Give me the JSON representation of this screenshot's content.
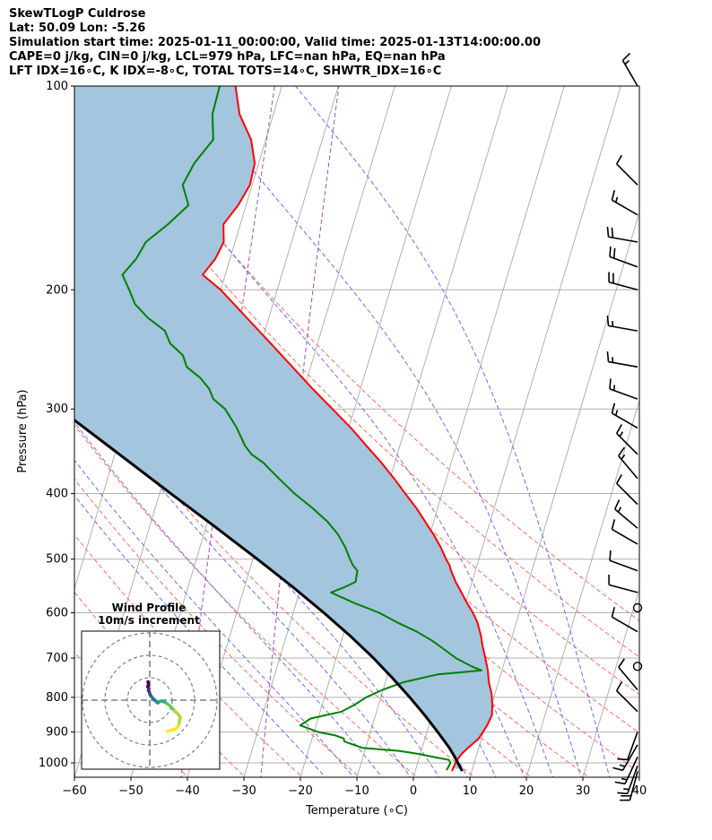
{
  "header": {
    "line1": "SkewTLogP Culdrose",
    "line2": "Lat: 50.09   Lon: -5.26",
    "line3": "Simulation start time: 2025-01-11_00:00:00, Valid time: 2025-01-13T14:00:00.00",
    "line4": "CAPE=0 j/kg, CIN=0 j/kg, LCL=979 hPa, LFC=nan hPa, EQ=nan hPa",
    "line5": "LFT IDX=16∘C, K IDX=-8∘C, TOTAL TOTS=14∘C, SHWTR_IDX=16∘C"
  },
  "chart_data": {
    "type": "line",
    "subtype": "skew-T log-P",
    "xlabel": "Temperature (∘C)",
    "ylabel": "Pressure (hPa)",
    "xlim": [
      -60,
      40
    ],
    "ylim": [
      1050,
      100
    ],
    "yscale": "log",
    "x_ticks": [
      "−60",
      "−50",
      "−40",
      "−30",
      "−20",
      "−10",
      "0",
      "10",
      "20",
      "30",
      "40"
    ],
    "y_ticks": [
      "100",
      "200",
      "300",
      "400",
      "500",
      "600",
      "700",
      "800",
      "900",
      "1000"
    ],
    "grid": true,
    "series": [
      {
        "role": "temperature",
        "color": "#ff0000",
        "p": [
          1028,
          1010,
          990,
          970,
          950,
          920,
          880,
          850,
          820,
          790,
          760,
          730,
          700,
          670,
          650,
          620,
          600,
          580,
          560,
          540,
          520,
          510,
          500,
          480,
          460,
          440,
          420,
          400,
          380,
          360,
          340,
          320,
          300,
          280,
          260,
          240,
          220,
          200,
          190,
          180,
          170,
          160,
          150,
          140,
          130,
          120,
          110,
          100
        ],
        "t": [
          6.5,
          6.6,
          6.8,
          7.3,
          8.1,
          9.5,
          10.3,
          10.6,
          10.1,
          9.4,
          8.3,
          7.5,
          6.4,
          5.2,
          4.5,
          3.1,
          1.8,
          0.2,
          -1.3,
          -2.9,
          -4.3,
          -4.9,
          -5.8,
          -7.4,
          -9.3,
          -11.5,
          -13.8,
          -16.5,
          -19.3,
          -22.4,
          -25.9,
          -29.6,
          -33.9,
          -38.5,
          -43.2,
          -48.3,
          -53.9,
          -60.0,
          -64.0,
          -62.6,
          -62.0,
          -63.0,
          -61.4,
          -60.4,
          -60.7,
          -62.6,
          -66.0,
          -68.2
        ]
      },
      {
        "role": "dewpoint",
        "color": "#008000",
        "p": [
          1025,
          1010,
          1000,
          990,
          980,
          970,
          960,
          950,
          930,
          920,
          910,
          900,
          880,
          860,
          840,
          820,
          800,
          780,
          760,
          740,
          730,
          720,
          700,
          680,
          660,
          640,
          620,
          600,
          580,
          560,
          550,
          540,
          520,
          510,
          500,
          480,
          460,
          440,
          420,
          400,
          380,
          360,
          350,
          340,
          320,
          300,
          290,
          280,
          270,
          260,
          250,
          240,
          230,
          220,
          210,
          200,
          190,
          180,
          170,
          160,
          150,
          140,
          130,
          120,
          110,
          100
        ],
        "t": [
          5.5,
          5.7,
          5.8,
          5.4,
          2.5,
          -0.3,
          -3.9,
          -10.6,
          -14.1,
          -14.4,
          -16.2,
          -19.3,
          -22.8,
          -21.3,
          -16.2,
          -14.2,
          -12.6,
          -10.1,
          -6.8,
          -1.2,
          6.4,
          4.4,
          1.2,
          -1.3,
          -3.9,
          -7.1,
          -11.1,
          -14.8,
          -19.8,
          -24.4,
          -22.3,
          -20.6,
          -20.9,
          -22.0,
          -22.8,
          -24.3,
          -26.2,
          -28.8,
          -32.2,
          -36.1,
          -39.7,
          -43.3,
          -45.8,
          -47.4,
          -49.8,
          -52.9,
          -55.5,
          -56.8,
          -58.9,
          -61.9,
          -63.2,
          -66.1,
          -67.7,
          -71.4,
          -74.4,
          -76.2,
          -78.2,
          -76.6,
          -75.8,
          -72.8,
          -70.2,
          -72.3,
          -71.4,
          -69.3,
          -70.8,
          -71.0
        ]
      },
      {
        "role": "parcel",
        "color": "#000000",
        "p": [
          1028,
          979,
          950,
          900,
          850,
          800,
          750,
          700,
          650,
          600,
          550,
          500,
          450,
          400,
          350,
          300,
          250,
          200,
          150,
          100
        ],
        "t": [
          8.3,
          6.2,
          4.8,
          1.9,
          -1.3,
          -4.9,
          -8.9,
          -13.4,
          -18.6,
          -24.6,
          -31.4,
          -39.2,
          -48.0,
          -58.0,
          -69.2,
          -82.2,
          -97.4,
          -115.6,
          -138.2,
          -168.5
        ]
      }
    ],
    "shading": {
      "between": [
        "parcel",
        "temperature"
      ],
      "color": "#a3c5de"
    },
    "background_lines": [
      {
        "name": "isotherms",
        "color": "#a8a8a8",
        "style": "solid",
        "values": [
          -140,
          -130,
          -120,
          -110,
          -100,
          -90,
          -80,
          -70,
          -60,
          -50,
          -40,
          -30,
          -20,
          -10,
          0,
          10,
          20,
          30,
          40
        ]
      },
      {
        "name": "dry adiabats",
        "color": "#ff6b6b",
        "style": "dashed",
        "units": "K",
        "values": [
          230,
          240,
          250,
          260,
          270,
          280,
          290,
          300,
          310,
          320,
          330,
          340,
          350
        ]
      },
      {
        "name": "moist adiabats",
        "color": "#6b6bff",
        "style": "dashed",
        "values": [
          -15,
          -10,
          -5,
          0,
          5,
          10,
          15,
          20,
          25,
          30,
          35
        ]
      },
      {
        "name": "mixing ratio",
        "color": "#a050c0",
        "style": "dashed",
        "values": [
          0.0001,
          0.0004
        ]
      }
    ],
    "wind_barbs": {
      "color": "#000000",
      "p": [
        100,
        140,
        155,
        170,
        185,
        200,
        230,
        260,
        290,
        320,
        350,
        380,
        415,
        450,
        475,
        520,
        560,
        590,
        640,
        720,
        780,
        840,
        900,
        940,
        980,
        1010,
        1030
      ],
      "speed_kt": [
        15,
        10,
        15,
        20,
        20,
        20,
        15,
        15,
        15,
        15,
        15,
        15,
        10,
        15,
        10,
        10,
        10,
        0,
        10,
        0,
        10,
        10,
        10,
        15,
        15,
        15,
        20
      ],
      "direction_deg": [
        330,
        315,
        300,
        280,
        290,
        285,
        280,
        280,
        290,
        300,
        315,
        320,
        315,
        310,
        300,
        290,
        285,
        0,
        300,
        0,
        320,
        315,
        200,
        210,
        205,
        200,
        195
      ]
    },
    "hodograph": {
      "title": "Wind Profile",
      "subtitle": "10m/s increment",
      "ring_step_ms": 10,
      "rings": 3,
      "u": [
        -0.8,
        -0.5,
        -0.9,
        -0.4,
        -0.6,
        -0.2,
        0.0,
        0.2,
        0.6,
        1.0,
        1.6,
        2.2,
        2.8,
        3.0,
        3.6,
        4.4,
        5.4,
        6.5,
        7.5,
        8.6,
        9.8,
        11.0,
        12.4,
        13.6,
        12.8,
        11.4,
        9.6,
        7.8
      ],
      "v": [
        8.2,
        7.0,
        6.0,
        5.2,
        4.4,
        3.6,
        2.9,
        2.3,
        1.8,
        1.3,
        0.6,
        0.0,
        -0.4,
        -0.8,
        -1.2,
        -0.6,
        -0.4,
        -0.8,
        -1.4,
        -2.2,
        -3.4,
        -4.8,
        -6.0,
        -7.6,
        -11.6,
        -13.0,
        -13.4,
        -14.0
      ],
      "colormap": "viridis"
    }
  }
}
